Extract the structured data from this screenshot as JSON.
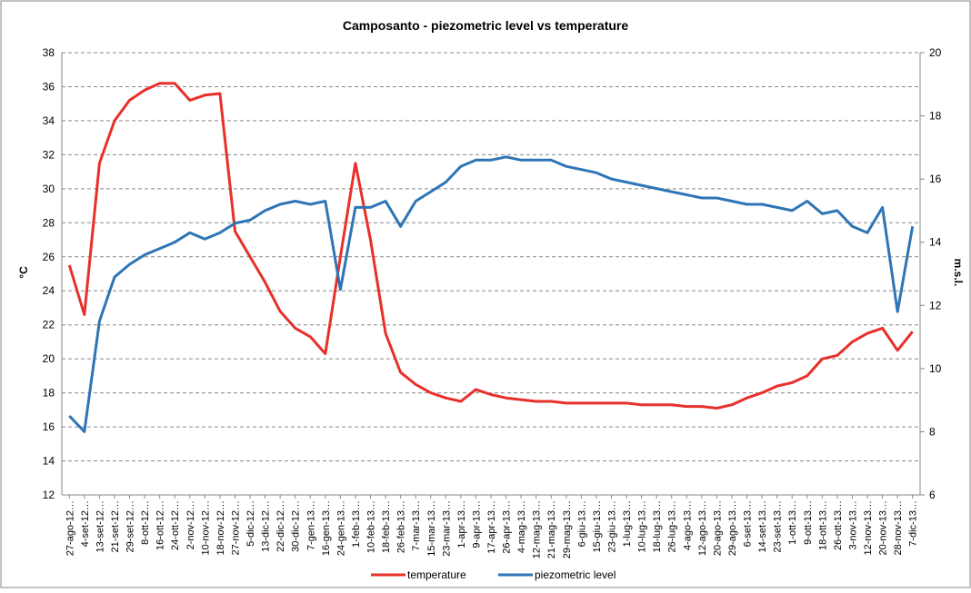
{
  "chart_data": {
    "type": "line",
    "title": "Camposanto - piezometric level vs temperature",
    "y_label": "°C",
    "y2_label": "m.s.l.",
    "categories": [
      "27-ago-12…",
      "4-set-12…",
      "13-set-12…",
      "21-set-12…",
      "29-set-12…",
      "8-ott-12…",
      "16-ott-12…",
      "24-ott-12…",
      "2-nov-12…",
      "10-nov-12…",
      "18-nov-12…",
      "27-nov-12…",
      "5-dic-12…",
      "13-dic-12…",
      "22-dic-12…",
      "30-dic-12…",
      "7-gen-13…",
      "16-gen-13…",
      "24-gen-13…",
      "1-feb-13…",
      "10-feb-13…",
      "18-feb-13…",
      "26-feb-13…",
      "7-mar-13…",
      "15-mar-13…",
      "23-mar-13…",
      "1-apr-13…",
      "9-apr-13…",
      "17-apr-13…",
      "26-apr-13…",
      "4-mag-13…",
      "12-mag-13…",
      "21-mag-13…",
      "29-mag-13…",
      "6-giu-13…",
      "15-giu-13…",
      "23-giu-13…",
      "1-lug-13…",
      "10-lug-13…",
      "18-lug-13…",
      "26-lug-13…",
      "4-ago-13…",
      "12-ago-13…",
      "20-ago-13…",
      "29-ago-13…",
      "6-set-13…",
      "14-set-13…",
      "23-set-13…",
      "1-ott-13…",
      "9-ott-13…",
      "18-ott-13…",
      "26-ott-13…",
      "3-nov-13…",
      "12-nov-13…",
      "20-nov-13…",
      "28-nov-13…",
      "7-dic-13…"
    ],
    "series": [
      {
        "name": "temperature",
        "color": "#e8302a",
        "axis": "y",
        "values": [
          25.5,
          22.6,
          31.5,
          34,
          35.2,
          35.8,
          36.2,
          36.2,
          35.2,
          35.5,
          35.6,
          27.5,
          26,
          24.5,
          22.8,
          21.8,
          21.3,
          20.3,
          26,
          31.5,
          27,
          21.5,
          19.2,
          18.5,
          18,
          17.7,
          17.5,
          18.2,
          17.9,
          17.7,
          17.6,
          17.5,
          17.5,
          17.4,
          17.4,
          17.4,
          17.4,
          17.4,
          17.3,
          17.3,
          17.3,
          17.2,
          17.2,
          17.1,
          17.3,
          17.7,
          18,
          18.4,
          18.6,
          19,
          20,
          20.2,
          21,
          21.5,
          21.8,
          20.5,
          21.6
        ]
      },
      {
        "name": "piezometric level",
        "color": "#2e75b6",
        "axis": "y2",
        "values": [
          8.5,
          8,
          11.5,
          12.9,
          13.3,
          13.6,
          13.8,
          14,
          14.3,
          14.1,
          14.3,
          14.6,
          14.7,
          15,
          15.2,
          15.3,
          15.2,
          15.3,
          12.5,
          15.1,
          15.1,
          15.3,
          14.5,
          15.3,
          15.6,
          15.9,
          16.4,
          16.6,
          16.6,
          16.7,
          16.6,
          16.6,
          16.6,
          16.4,
          16.3,
          16.2,
          16,
          15.9,
          15.8,
          15.7,
          15.6,
          15.5,
          15.4,
          15.4,
          15.3,
          15.2,
          15.2,
          15.1,
          15,
          15.3,
          14.9,
          15,
          14.5,
          14.3,
          15.1,
          11.8,
          14.5
        ]
      }
    ],
    "ylim": [
      12,
      38
    ],
    "yticks": [
      12,
      14,
      16,
      18,
      20,
      22,
      24,
      26,
      28,
      30,
      32,
      34,
      36,
      38
    ],
    "y2lim": [
      6,
      20
    ],
    "y2ticks": [
      6,
      8,
      10,
      12,
      14,
      16,
      18,
      20
    ],
    "grid": true,
    "legend": "bottom"
  }
}
